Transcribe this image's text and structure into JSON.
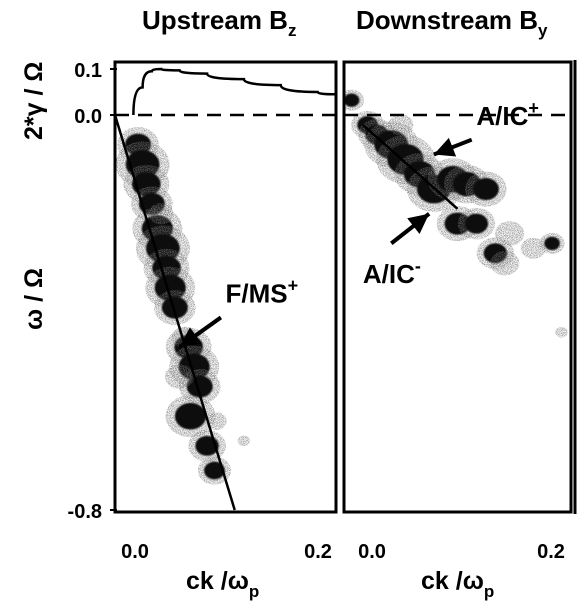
{
  "chart_data": {
    "type": "scatter",
    "ylabel_top": "2*γ / Ω",
    "ylabel": "ω / Ω",
    "y_ticks": [
      "0.1",
      "0.0",
      "-0.8"
    ],
    "panels": [
      {
        "title": "Upstream B",
        "title_sub": "z",
        "xlabel": "ck /ω",
        "xlabel_sub": "p",
        "x_ticks": [
          "0.0",
          "0.2"
        ],
        "xlim": [
          -0.02,
          0.22
        ],
        "growth_curve": {
          "x": [
            0.0,
            0.01,
            0.02,
            0.03,
            0.05,
            0.08,
            0.12,
            0.16,
            0.2,
            0.22
          ],
          "y": [
            0.0,
            0.06,
            0.095,
            0.1,
            0.097,
            0.09,
            0.078,
            0.065,
            0.05,
            0.045
          ]
        },
        "dispersion_line": {
          "x": [
            -0.02,
            0.11
          ],
          "y": [
            0.0,
            -0.8
          ]
        },
        "blobs": [
          {
            "x": 0.005,
            "y": -0.06,
            "size": 1.0,
            "density": "dark"
          },
          {
            "x": 0.01,
            "y": -0.1,
            "size": 1.3,
            "density": "dark"
          },
          {
            "x": 0.014,
            "y": -0.14,
            "size": 1.1,
            "density": "dark"
          },
          {
            "x": 0.02,
            "y": -0.18,
            "size": 1.0,
            "density": "dark"
          },
          {
            "x": 0.026,
            "y": -0.23,
            "size": 1.2,
            "density": "dark"
          },
          {
            "x": 0.032,
            "y": -0.27,
            "size": 1.3,
            "density": "dark"
          },
          {
            "x": 0.036,
            "y": -0.31,
            "size": 1.1,
            "density": "dark"
          },
          {
            "x": 0.04,
            "y": -0.35,
            "size": 1.2,
            "density": "dark"
          },
          {
            "x": 0.045,
            "y": -0.39,
            "size": 1.0,
            "density": "dark"
          },
          {
            "x": 0.06,
            "y": -0.47,
            "size": 1.1,
            "density": "dark"
          },
          {
            "x": 0.066,
            "y": -0.51,
            "size": 1.2,
            "density": "dark"
          },
          {
            "x": 0.072,
            "y": -0.55,
            "size": 1.0,
            "density": "dark"
          },
          {
            "x": 0.062,
            "y": -0.61,
            "size": 1.2,
            "density": "dark"
          },
          {
            "x": 0.08,
            "y": -0.67,
            "size": 0.9,
            "density": "dark"
          },
          {
            "x": 0.088,
            "y": -0.72,
            "size": 0.8,
            "density": "dark"
          },
          {
            "x": 0.05,
            "y": -0.53,
            "size": 0.7,
            "density": "light"
          },
          {
            "x": 0.055,
            "y": -0.45,
            "size": 0.6,
            "density": "light"
          },
          {
            "x": 0.09,
            "y": -0.62,
            "size": 0.5,
            "density": "light"
          },
          {
            "x": 0.12,
            "y": -0.66,
            "size": 0.3,
            "density": "light"
          },
          {
            "x": 0.03,
            "y": -0.2,
            "size": 0.6,
            "density": "light"
          }
        ],
        "annotations": [
          {
            "text": "F/MS",
            "sup": "+",
            "tip_x": 0.05,
            "tip_y": -0.47,
            "tail_x": 0.095,
            "tail_y": -0.41,
            "label_x": 0.1,
            "label_y": -0.38
          }
        ]
      },
      {
        "title": "Downstream B",
        "title_sub": "y",
        "xlabel": "ck /ω",
        "xlabel_sub": "p",
        "x_ticks": [
          "0.0",
          "0.2"
        ],
        "xlim": [
          -0.02,
          0.22
        ],
        "dispersion_line": {
          "x": [
            0.0,
            0.1
          ],
          "y": [
            -0.02,
            -0.19
          ]
        },
        "blobs": [
          {
            "x": -0.012,
            "y": 0.03,
            "size": 0.6,
            "density": "dark"
          },
          {
            "x": 0.005,
            "y": -0.02,
            "size": 0.8,
            "density": "dark"
          },
          {
            "x": 0.015,
            "y": -0.04,
            "size": 0.9,
            "density": "dark"
          },
          {
            "x": 0.03,
            "y": -0.06,
            "size": 1.3,
            "density": "dark"
          },
          {
            "x": 0.045,
            "y": -0.09,
            "size": 1.4,
            "density": "dark"
          },
          {
            "x": 0.06,
            "y": -0.12,
            "size": 1.2,
            "density": "dark"
          },
          {
            "x": 0.075,
            "y": -0.15,
            "size": 1.3,
            "density": "dark"
          },
          {
            "x": 0.095,
            "y": -0.13,
            "size": 1.2,
            "density": "dark"
          },
          {
            "x": 0.11,
            "y": -0.14,
            "size": 1.1,
            "density": "dark"
          },
          {
            "x": 0.13,
            "y": -0.15,
            "size": 1.0,
            "density": "dark"
          },
          {
            "x": 0.1,
            "y": -0.22,
            "size": 1.0,
            "density": "dark"
          },
          {
            "x": 0.12,
            "y": -0.22,
            "size": 0.9,
            "density": "dark"
          },
          {
            "x": 0.14,
            "y": -0.28,
            "size": 0.9,
            "density": "dark"
          },
          {
            "x": 0.2,
            "y": -0.26,
            "size": 0.6,
            "density": "dark"
          },
          {
            "x": 0.155,
            "y": -0.24,
            "size": 0.7,
            "density": "light"
          },
          {
            "x": 0.18,
            "y": -0.27,
            "size": 0.6,
            "density": "light"
          },
          {
            "x": 0.15,
            "y": -0.3,
            "size": 0.7,
            "density": "light"
          },
          {
            "x": 0.21,
            "y": -0.44,
            "size": 0.3,
            "density": "light"
          },
          {
            "x": 0.04,
            "y": -0.02,
            "size": 0.6,
            "density": "light"
          }
        ],
        "annotations": [
          {
            "text": "A/IC",
            "sup": "+",
            "tip_x": 0.075,
            "tip_y": -0.08,
            "tail_x": 0.115,
            "tail_y": -0.05,
            "label_x": 0.12,
            "label_y": -0.02
          },
          {
            "text": "A/IC",
            "sup": "-",
            "tip_x": 0.07,
            "tip_y": -0.2,
            "tail_x": 0.03,
            "tail_y": -0.26,
            "label_x": 0.0,
            "label_y": -0.34
          }
        ]
      }
    ]
  }
}
